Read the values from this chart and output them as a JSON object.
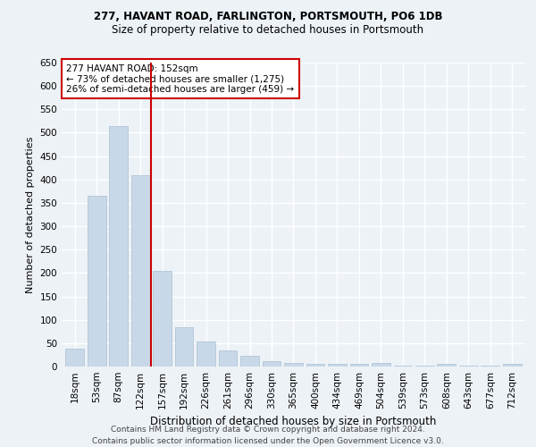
{
  "title1": "277, HAVANT ROAD, FARLINGTON, PORTSMOUTH, PO6 1DB",
  "title2": "Size of property relative to detached houses in Portsmouth",
  "xlabel": "Distribution of detached houses by size in Portsmouth",
  "ylabel": "Number of detached properties",
  "footer1": "Contains HM Land Registry data © Crown copyright and database right 2024.",
  "footer2": "Contains public sector information licensed under the Open Government Licence v3.0.",
  "annotation_line1": "277 HAVANT ROAD: 152sqm",
  "annotation_line2": "← 73% of detached houses are smaller (1,275)",
  "annotation_line3": "26% of semi-detached houses are larger (459) →",
  "bar_color": "#c8d8e8",
  "bar_edge_color": "#a8c0d0",
  "vline_color": "#cc0000",
  "vline_x": 3.5,
  "categories": [
    "18sqm",
    "53sqm",
    "87sqm",
    "122sqm",
    "157sqm",
    "192sqm",
    "226sqm",
    "261sqm",
    "296sqm",
    "330sqm",
    "365sqm",
    "400sqm",
    "434sqm",
    "469sqm",
    "504sqm",
    "539sqm",
    "573sqm",
    "608sqm",
    "643sqm",
    "677sqm",
    "712sqm"
  ],
  "values": [
    38,
    365,
    515,
    410,
    205,
    84,
    53,
    35,
    22,
    12,
    8,
    5,
    5,
    5,
    8,
    2,
    2,
    5,
    2,
    2,
    5
  ],
  "ylim": [
    0,
    650
  ],
  "yticks": [
    0,
    50,
    100,
    150,
    200,
    250,
    300,
    350,
    400,
    450,
    500,
    550,
    600,
    650
  ],
  "background_color": "#edf2f7",
  "grid_color": "#ffffff",
  "annotation_box_color": "#ffffff",
  "annotation_box_edge": "#cc0000",
  "title1_fontsize": 8.5,
  "title2_fontsize": 8.5,
  "ylabel_fontsize": 8,
  "xlabel_fontsize": 8.5,
  "footer_fontsize": 6.5,
  "annot_fontsize": 7.5,
  "tick_fontsize": 7.5
}
